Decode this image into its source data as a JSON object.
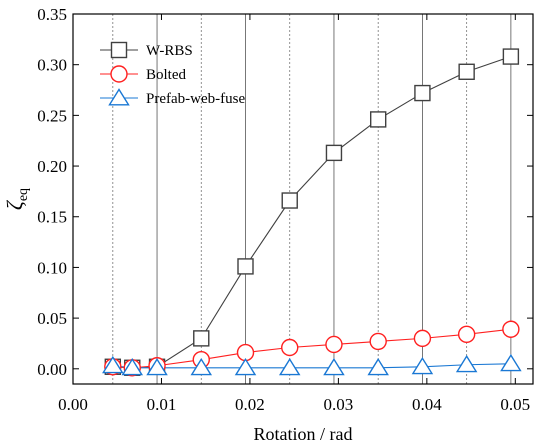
{
  "chart_data": {
    "type": "line",
    "xlabel": "Rotation / rad",
    "ylabel_main": "ζ",
    "ylabel_sub": "eq",
    "xlim": [
      0.0,
      0.052
    ],
    "ylim": [
      -0.015,
      0.35
    ],
    "xticks": [
      0.0,
      0.01,
      0.02,
      0.03,
      0.04,
      0.05
    ],
    "xtick_labels": [
      "0.00",
      "0.01",
      "0.02",
      "0.03",
      "0.04",
      "0.05"
    ],
    "yticks": [
      0.0,
      0.05,
      0.1,
      0.15,
      0.2,
      0.25,
      0.3,
      0.35
    ],
    "ytick_labels": [
      "0.00",
      "0.05",
      "0.10",
      "0.15",
      "0.20",
      "0.25",
      "0.30",
      "0.35"
    ],
    "grid_solid_x": [
      0.0095,
      0.0195,
      0.0295,
      0.0395,
      0.0495
    ],
    "grid_dotted_x": [
      0.0045,
      0.0145,
      0.0245,
      0.0345,
      0.0445
    ],
    "legend_position": "top-left",
    "series": [
      {
        "name": "W-RBS",
        "color": "#404040",
        "marker": "square",
        "x": [
          0.0045,
          0.0067,
          0.0095,
          0.0145,
          0.0195,
          0.0245,
          0.0295,
          0.0345,
          0.0395,
          0.0445,
          0.0495
        ],
        "y": [
          0.002,
          0.001,
          0.002,
          0.03,
          0.101,
          0.166,
          0.213,
          0.246,
          0.272,
          0.293,
          0.308
        ]
      },
      {
        "name": "Bolted",
        "color": "#ff2020",
        "marker": "circle",
        "x": [
          0.0045,
          0.0067,
          0.0095,
          0.0145,
          0.0195,
          0.0245,
          0.0295,
          0.0345,
          0.0395,
          0.0445,
          0.0495
        ],
        "y": [
          0.002,
          0.001,
          0.003,
          0.009,
          0.016,
          0.021,
          0.024,
          0.027,
          0.03,
          0.034,
          0.039
        ]
      },
      {
        "name": "Prefab-web-fuse",
        "color": "#1a78d4",
        "marker": "triangle",
        "x": [
          0.0045,
          0.0067,
          0.0095,
          0.0145,
          0.0195,
          0.0245,
          0.0295,
          0.0345,
          0.0395,
          0.0445,
          0.0495
        ],
        "y": [
          0.003,
          0.001,
          0.001,
          0.001,
          0.001,
          0.001,
          0.001,
          0.001,
          0.002,
          0.004,
          0.005
        ]
      }
    ]
  }
}
